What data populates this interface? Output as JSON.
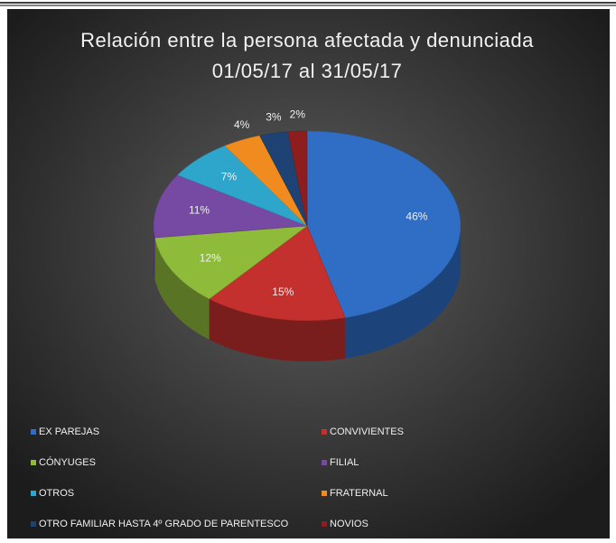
{
  "chart_data": {
    "type": "pie3d",
    "title": "Relación entre la persona afectada y denunciada",
    "subtitle": "01/05/17 al 31/05/17",
    "categories": [
      "EX PAREJAS",
      "CONVIVIENTES",
      "CÓNYUGES",
      "FILIAL",
      "OTROS",
      "FRATERNAL",
      "OTRO FAMILIAR HASTA 4º GRADO DE PARENTESCO",
      "NOVIOS"
    ],
    "values": [
      46,
      15,
      12,
      11,
      7,
      4,
      3,
      2
    ],
    "value_labels": [
      "46%",
      "15%",
      "12%",
      "11%",
      "7%",
      "4%",
      "3%",
      "2%"
    ],
    "colors": [
      "#2f6ec4",
      "#c3302d",
      "#8fbb3b",
      "#7649a3",
      "#2ea6cc",
      "#f08c1f",
      "#1f4275",
      "#8e1e1e"
    ],
    "legend": "bottom"
  }
}
